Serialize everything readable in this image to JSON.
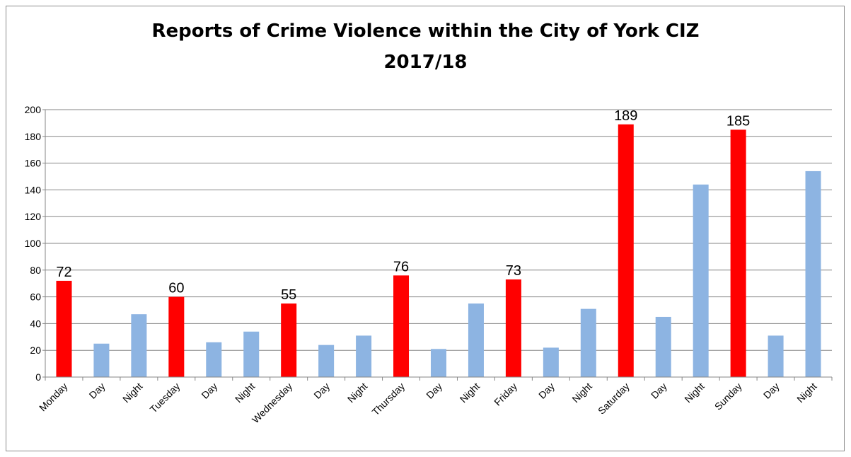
{
  "chart_data": {
    "type": "bar",
    "title": "Reports of Crime Violence within the City of York CIZ",
    "subtitle": "2017/18",
    "xlabel": "",
    "ylabel": "",
    "ylim": [
      0,
      200
    ],
    "yticks": [
      0,
      20,
      40,
      60,
      80,
      100,
      120,
      140,
      160,
      180,
      200
    ],
    "grid": true,
    "categories": [
      "Monday",
      "Day",
      "Night",
      "Tuesday",
      "Day",
      "Night",
      "Wednesday",
      "Day",
      "Night",
      "Thursday",
      "Day",
      "Night",
      "Friday",
      "Day",
      "Night",
      "Saturday",
      "Day",
      "Night",
      "Sunday",
      "Day",
      "Night"
    ],
    "values": [
      72,
      25,
      47,
      60,
      26,
      34,
      55,
      24,
      31,
      76,
      21,
      55,
      73,
      22,
      51,
      189,
      45,
      144,
      185,
      31,
      154
    ],
    "bar_colors": [
      "#ff0000",
      "#8db4e2",
      "#8db4e2",
      "#ff0000",
      "#8db4e2",
      "#8db4e2",
      "#ff0000",
      "#8db4e2",
      "#8db4e2",
      "#ff0000",
      "#8db4e2",
      "#8db4e2",
      "#ff0000",
      "#8db4e2",
      "#8db4e2",
      "#ff0000",
      "#8db4e2",
      "#8db4e2",
      "#ff0000",
      "#8db4e2",
      "#8db4e2"
    ],
    "data_labels": [
      "72",
      "",
      "",
      "60",
      "",
      "",
      "55",
      "",
      "",
      "76",
      "",
      "",
      "73",
      "",
      "",
      "189",
      "",
      "",
      "185",
      "",
      ""
    ]
  }
}
